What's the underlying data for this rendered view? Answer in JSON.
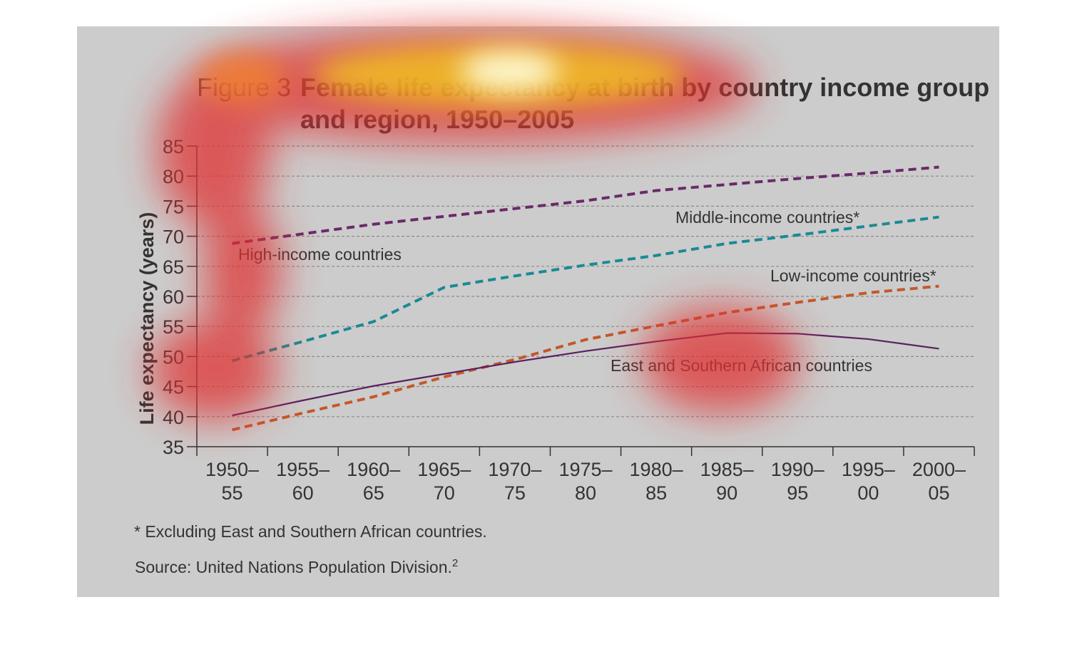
{
  "figure_label": "Figure 3",
  "title_line1": "Female life expectancy at birth by country income group",
  "title_line2": "and region, 1950–2005",
  "footnote": "* Excluding East and Southern African countries.",
  "source": "Source: United Nations Population Division.",
  "source_superscript": "2",
  "colors": {
    "panel_bg": "#cccccc",
    "high_income": "#6a2a6a",
    "middle_income": "#1a8a94",
    "low_income": "#c4582a",
    "east_southern_africa": "#5a2060",
    "text": "#333333"
  },
  "chart_data": {
    "type": "line",
    "title": "Female life expectancy at birth by country income group and region, 1950–2005",
    "ylabel": "Life expectancy (years)",
    "xlabel": "",
    "ylim": [
      35,
      85
    ],
    "yticks": [
      35,
      40,
      45,
      50,
      55,
      60,
      65,
      70,
      75,
      80,
      85
    ],
    "grid": true,
    "categories": [
      [
        "1950–",
        "55"
      ],
      [
        "1955–",
        "60"
      ],
      [
        "1960–",
        "65"
      ],
      [
        "1965–",
        "70"
      ],
      [
        "1970–",
        "75"
      ],
      [
        "1975–",
        "80"
      ],
      [
        "1980–",
        "85"
      ],
      [
        "1985–",
        "90"
      ],
      [
        "1990–",
        "95"
      ],
      [
        "1995–",
        "00"
      ],
      [
        "2000–",
        "05"
      ]
    ],
    "series": [
      {
        "name": "High-income countries",
        "style": "dashed",
        "color": "#6a2a6a",
        "values": [
          68.8,
          70.4,
          72.0,
          73.3,
          74.6,
          75.9,
          77.6,
          78.6,
          79.6,
          80.5,
          81.5
        ]
      },
      {
        "name": "Middle-income countries*",
        "style": "dashed",
        "color": "#1a8a94",
        "values": [
          49.3,
          52.5,
          55.8,
          61.5,
          63.4,
          65.2,
          66.8,
          68.8,
          70.2,
          71.7,
          73.2
        ]
      },
      {
        "name": "Low-income countries*",
        "style": "dashed",
        "color": "#c4582a",
        "values": [
          37.8,
          40.6,
          43.3,
          46.6,
          49.5,
          52.8,
          55.1,
          57.3,
          59.0,
          60.6,
          61.7
        ]
      },
      {
        "name": "East and Southern African countries",
        "style": "solid",
        "color": "#5a2060",
        "values": [
          40.2,
          42.7,
          45.1,
          47.1,
          49.1,
          50.9,
          52.5,
          53.9,
          53.8,
          52.9,
          51.3
        ]
      }
    ]
  }
}
